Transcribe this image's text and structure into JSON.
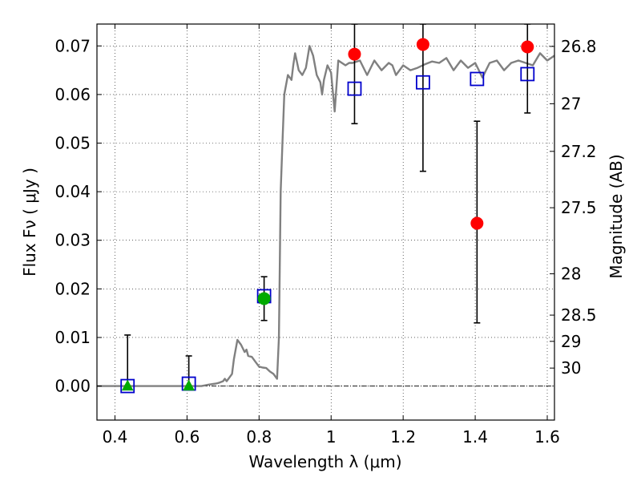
{
  "chart_data": {
    "type": "scatter",
    "xlabel": "Wavelength  λ (μm)",
    "ylabel": "Flux  Fν  ( μJy )",
    "ylabel_right": "Magnitude (AB)",
    "xlim": [
      0.35,
      1.62
    ],
    "ylim": [
      -0.007,
      0.0745
    ],
    "grid": true,
    "xticks": [
      0.4,
      0.6,
      0.8,
      1.0,
      1.2,
      1.4,
      1.6
    ],
    "xtick_labels": [
      "0.4",
      "0.6",
      "0.8",
      "1",
      "1.2",
      "1.4",
      "1.6"
    ],
    "yticks": [
      0.0,
      0.01,
      0.02,
      0.03,
      0.04,
      0.05,
      0.06,
      0.07
    ],
    "ytick_labels": [
      "0.00",
      "0.01",
      "0.02",
      "0.03",
      "0.04",
      "0.05",
      "0.06",
      "0.07"
    ],
    "right_axis_ticks": [
      {
        "label": "26.8",
        "flux": 0.0699
      },
      {
        "label": "27",
        "flux": 0.0581
      },
      {
        "label": "27.2",
        "flux": 0.0483
      },
      {
        "label": "27.5",
        "flux": 0.0367
      },
      {
        "label": "28",
        "flux": 0.0231
      },
      {
        "label": "28.5",
        "flux": 0.0146
      },
      {
        "label": "29",
        "flux": 0.0092
      },
      {
        "label": "30",
        "flux": 0.0037
      }
    ],
    "colors": {
      "model": "#808080",
      "model_photometry": "#0000cc",
      "detections": "#ff0000",
      "upper_limits": "#00aa00",
      "errorbar": "#000000"
    },
    "series": [
      {
        "kind": "line",
        "x": [
          0.35,
          0.4,
          0.45,
          0.5,
          0.55,
          0.6,
          0.64,
          0.66,
          0.68,
          0.69,
          0.7,
          0.705,
          0.71,
          0.72,
          0.725,
          0.73,
          0.74,
          0.75,
          0.76,
          0.765,
          0.77,
          0.78,
          0.79,
          0.8,
          0.81,
          0.82,
          0.83,
          0.84,
          0.85,
          0.855,
          0.86,
          0.865,
          0.87,
          0.88,
          0.89,
          0.895,
          0.9,
          0.91,
          0.92,
          0.93,
          0.94,
          0.95,
          0.96,
          0.97,
          0.975,
          0.98,
          0.99,
          1.0,
          1.01,
          1.02,
          1.03,
          1.04,
          1.05,
          1.06,
          1.08,
          1.1,
          1.12,
          1.14,
          1.16,
          1.17,
          1.18,
          1.2,
          1.22,
          1.24,
          1.26,
          1.28,
          1.3,
          1.32,
          1.34,
          1.36,
          1.38,
          1.4,
          1.42,
          1.44,
          1.46,
          1.48,
          1.5,
          1.52,
          1.54,
          1.56,
          1.58,
          1.6,
          1.62
        ],
        "y": [
          0.0,
          0.0,
          0.0,
          0.0,
          0.0,
          0.0,
          0.0,
          0.0003,
          0.0005,
          0.0007,
          0.001,
          0.0015,
          0.001,
          0.002,
          0.0025,
          0.0055,
          0.0095,
          0.0085,
          0.007,
          0.0075,
          0.0062,
          0.006,
          0.005,
          0.004,
          0.0038,
          0.0037,
          0.003,
          0.0025,
          0.0015,
          0.01,
          0.04,
          0.05,
          0.06,
          0.064,
          0.063,
          0.066,
          0.0685,
          0.065,
          0.064,
          0.0655,
          0.07,
          0.068,
          0.064,
          0.0625,
          0.06,
          0.063,
          0.066,
          0.0645,
          0.0565,
          0.067,
          0.0665,
          0.066,
          0.0665,
          0.0665,
          0.067,
          0.064,
          0.067,
          0.065,
          0.0665,
          0.066,
          0.064,
          0.066,
          0.065,
          0.0655,
          0.0662,
          0.0668,
          0.0665,
          0.0675,
          0.065,
          0.067,
          0.0655,
          0.0665,
          0.0635,
          0.0665,
          0.067,
          0.065,
          0.0665,
          0.067,
          0.0665,
          0.066,
          0.0685,
          0.067,
          0.068
        ]
      },
      {
        "kind": "squares",
        "x": [
          0.435,
          0.605,
          0.814,
          1.065,
          1.255,
          1.405,
          1.545
        ],
        "y": [
          0.0,
          0.0005,
          0.0185,
          0.0612,
          0.0625,
          0.0632,
          0.0642
        ]
      },
      {
        "kind": "circles",
        "x": [
          0.814,
          1.065,
          1.255,
          1.405,
          1.545
        ],
        "y": [
          0.018,
          0.0683,
          0.0703,
          0.0335,
          0.0698
        ]
      },
      {
        "kind": "triangles",
        "x": [
          0.435,
          0.605
        ],
        "y": [
          0.0,
          0.0
        ]
      },
      {
        "kind": "errorbars",
        "points": [
          {
            "x": 0.435,
            "low": 0.0,
            "high": 0.0105
          },
          {
            "x": 0.605,
            "low": 0.0,
            "high": 0.0062
          },
          {
            "x": 0.814,
            "low": 0.0135,
            "high": 0.0225
          },
          {
            "x": 1.065,
            "low": 0.054,
            "high": 0.0745
          },
          {
            "x": 1.255,
            "low": 0.0442,
            "high": 0.0745
          },
          {
            "x": 1.405,
            "low": 0.013,
            "high": 0.0545
          },
          {
            "x": 1.545,
            "low": 0.0562,
            "high": 0.0745
          }
        ]
      }
    ]
  }
}
